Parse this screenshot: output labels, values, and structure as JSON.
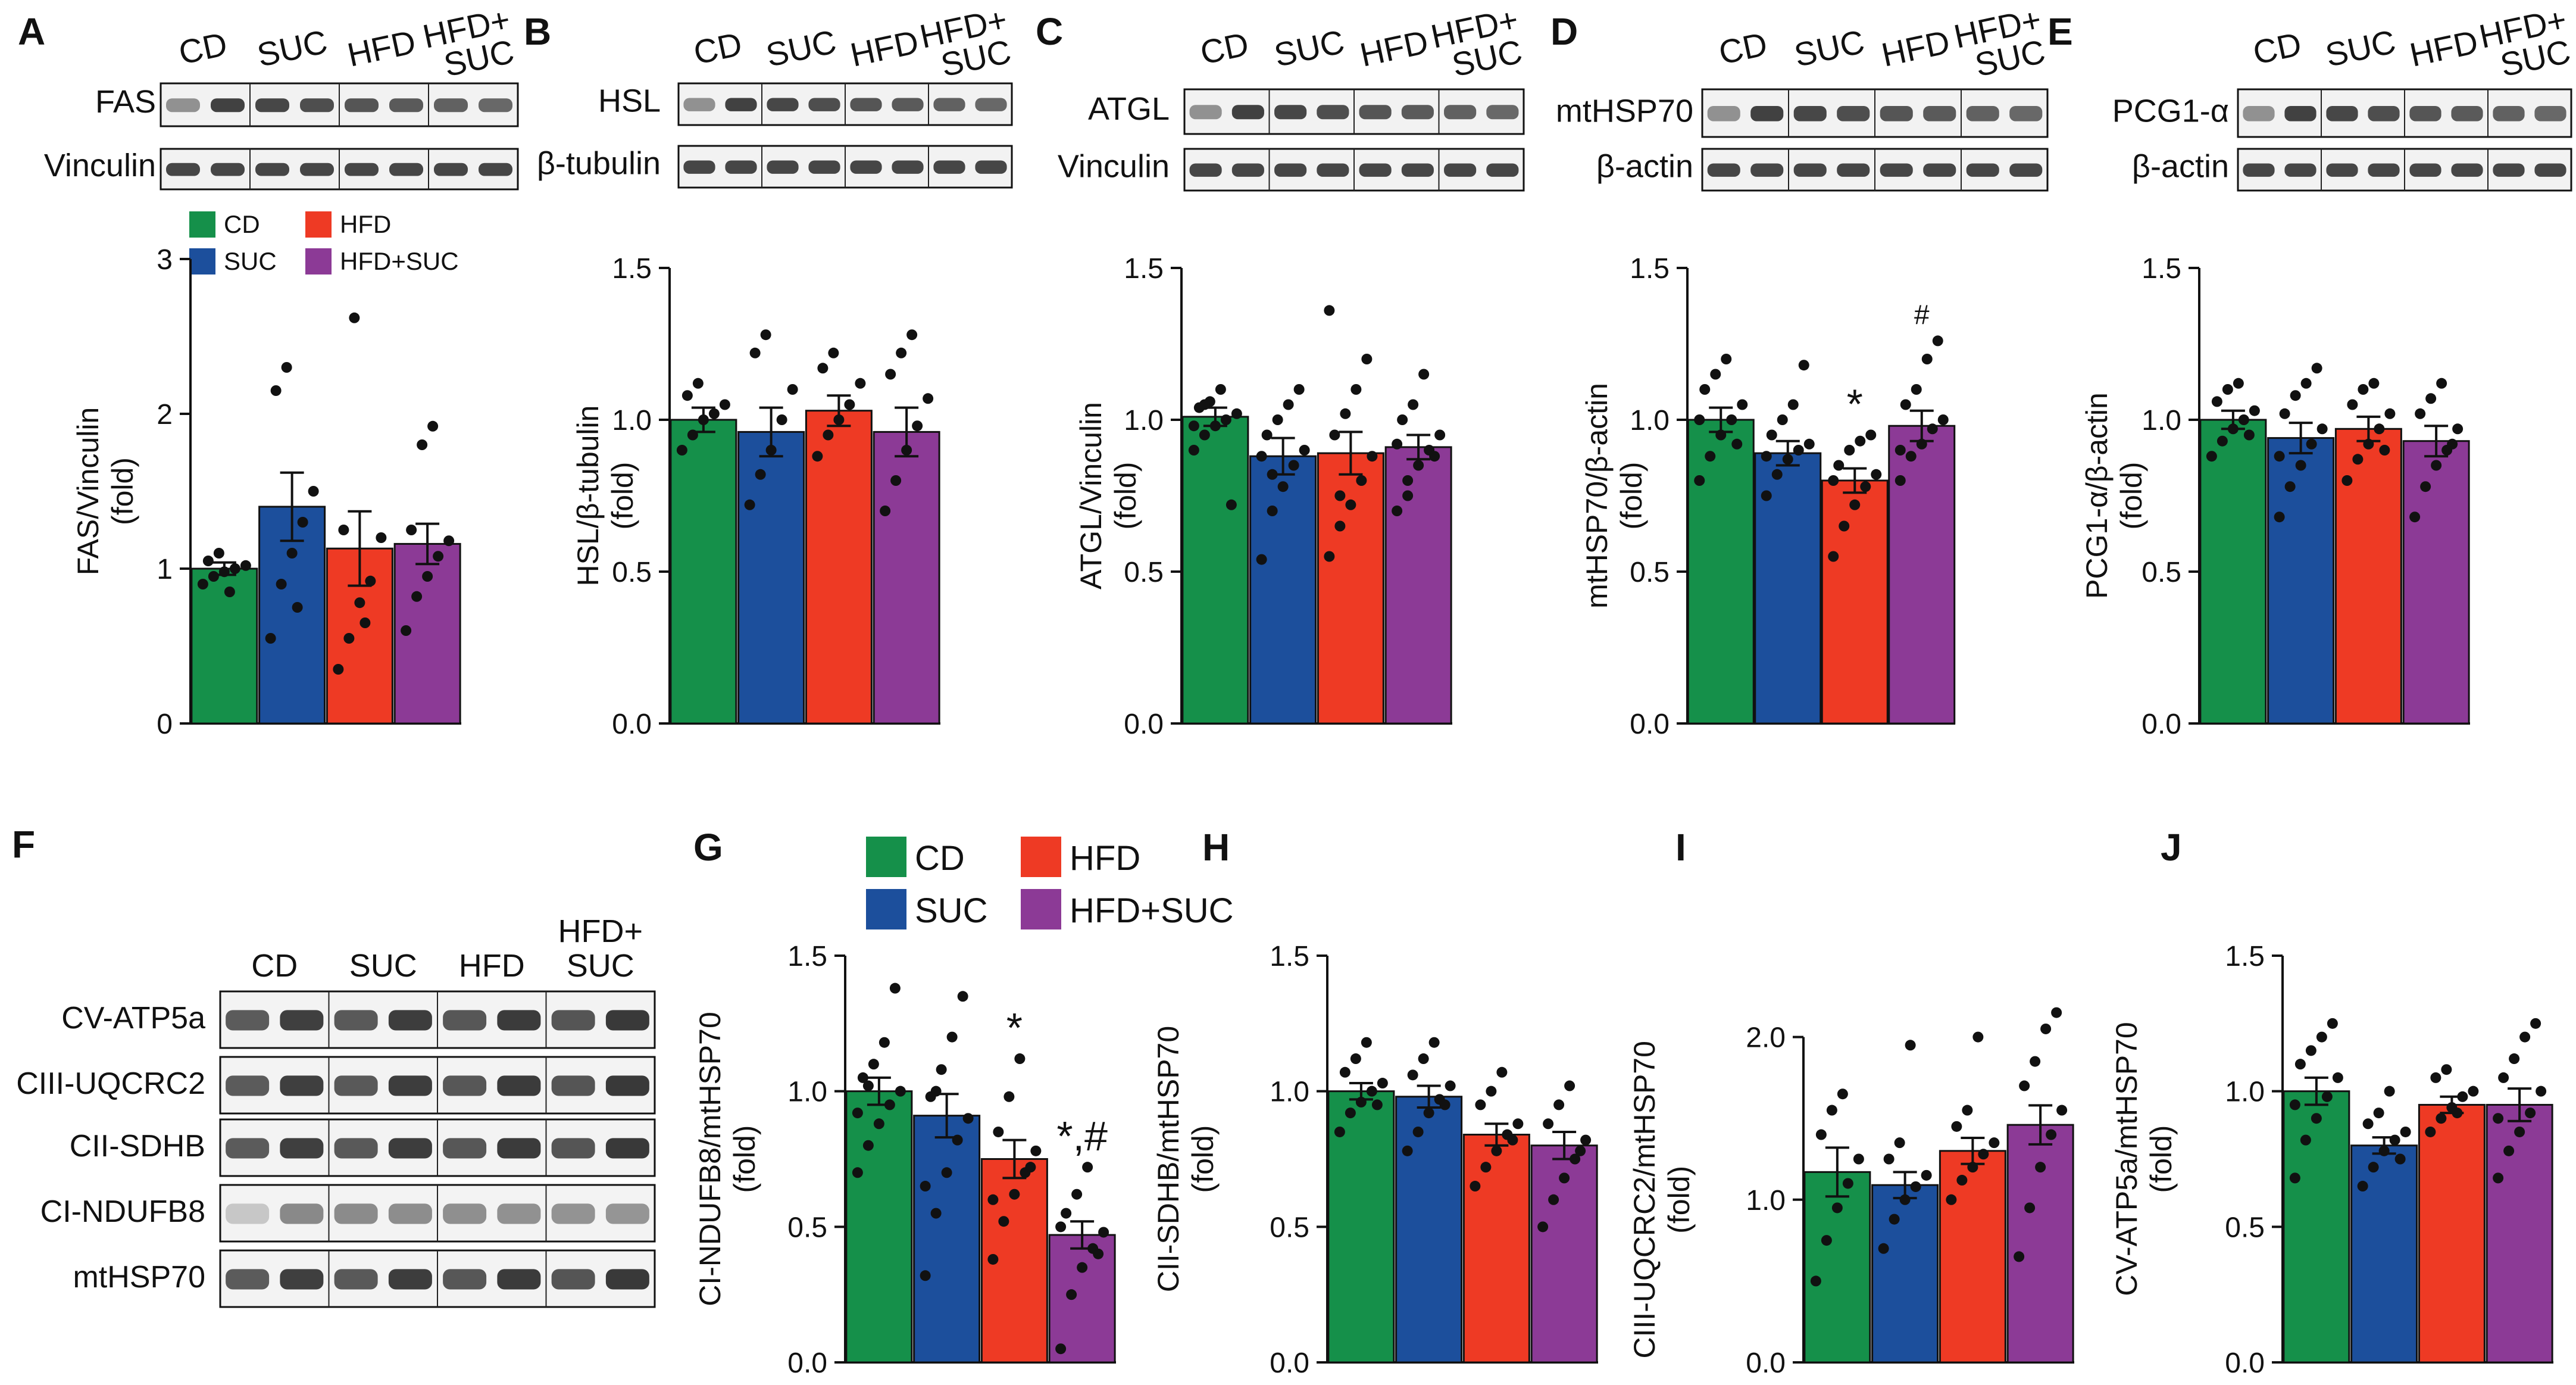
{
  "colors": {
    "CD": "#15904a",
    "SUC": "#1c4f9c",
    "HFD": "#ee3a24",
    "HFD+SUC": "#8c3a96",
    "axis": "#111111",
    "dot": "#111111"
  },
  "legend_top": {
    "items": [
      "CD",
      "SUC",
      "HFD",
      "HFD+SUC"
    ]
  },
  "legend_bottom": {
    "items": [
      "CD",
      "SUC",
      "HFD",
      "HFD+SUC"
    ]
  },
  "blot_top": {
    "A": {
      "letter": "A",
      "groups": [
        "CD",
        "SUC",
        "HFD",
        "HFD+\nSUC"
      ],
      "rows": [
        "FAS",
        "Vinculin"
      ]
    },
    "B": {
      "letter": "B",
      "groups": [
        "CD",
        "SUC",
        "HFD",
        "HFD+\nSUC"
      ],
      "rows": [
        "HSL",
        "β-tubulin"
      ]
    },
    "C": {
      "letter": "C",
      "groups": [
        "CD",
        "SUC",
        "HFD",
        "HFD+\nSUC"
      ],
      "rows": [
        "ATGL",
        "Vinculin"
      ]
    },
    "D": {
      "letter": "D",
      "groups": [
        "CD",
        "SUC",
        "HFD",
        "HFD+\nSUC"
      ],
      "rows": [
        "mtHSP70",
        "β-actin"
      ]
    },
    "E": {
      "letter": "E",
      "groups": [
        "CD",
        "SUC",
        "HFD",
        "HFD+\nSUC"
      ],
      "rows": [
        "PCG1-α",
        "β-actin"
      ]
    }
  },
  "blot_F": {
    "letter": "F",
    "groups": [
      "CD",
      "SUC",
      "HFD",
      "HFD+\nSUC"
    ],
    "rows": [
      "CV-ATP5a",
      "CIII-UQCRC2",
      "CII-SDHB",
      "CI-NDUFB8",
      "mtHSP70"
    ]
  },
  "chart_data": [
    {
      "id": "A",
      "letter": "",
      "type": "bar",
      "title": "",
      "xlabel": "",
      "ylabel": "FAS/Vinculin\n(fold)",
      "categories": [
        "CD",
        "SUC",
        "HFD",
        "HFD+SUC"
      ],
      "values": [
        1.0,
        1.4,
        1.13,
        1.16
      ],
      "errors": [
        0.04,
        0.22,
        0.24,
        0.13
      ],
      "ylim": [
        0,
        3
      ],
      "yticks": [
        0,
        1,
        2,
        3
      ],
      "tick_labels": [
        "0",
        "1",
        "2",
        "3"
      ],
      "annotations": [
        "",
        "",
        "",
        ""
      ],
      "points": [
        [
          0.9,
          0.95,
          0.98,
          1.0,
          1.02,
          1.05,
          1.1,
          0.85
        ],
        [
          0.55,
          0.9,
          1.1,
          1.3,
          1.5,
          2.15,
          2.3,
          0.75
        ],
        [
          0.35,
          0.55,
          0.78,
          0.92,
          1.2,
          1.25,
          2.62,
          0.65
        ],
        [
          0.6,
          0.82,
          0.95,
          1.08,
          1.18,
          1.25,
          1.8,
          1.92
        ]
      ]
    },
    {
      "id": "B",
      "letter": "",
      "type": "bar",
      "title": "",
      "xlabel": "",
      "ylabel": "HSL/β-tubulin\n(fold)",
      "categories": [
        "CD",
        "SUC",
        "HFD",
        "HFD+SUC"
      ],
      "values": [
        1.0,
        0.96,
        1.03,
        0.96
      ],
      "errors": [
        0.04,
        0.08,
        0.05,
        0.08
      ],
      "ylim": [
        0,
        1.5
      ],
      "yticks": [
        0,
        0.5,
        1.0,
        1.5
      ],
      "tick_labels": [
        "0.0",
        "0.5",
        "1.0",
        "1.5"
      ],
      "annotations": [
        "",
        "",
        "",
        ""
      ],
      "points": [
        [
          0.9,
          0.95,
          1.0,
          1.02,
          1.05,
          1.08,
          1.12
        ],
        [
          0.72,
          0.82,
          0.9,
          1.0,
          1.1,
          1.22,
          1.28
        ],
        [
          0.88,
          0.95,
          1.0,
          1.05,
          1.12,
          1.17,
          1.22
        ],
        [
          0.7,
          0.8,
          0.9,
          0.98,
          1.07,
          1.15,
          1.22,
          1.28
        ]
      ]
    },
    {
      "id": "C",
      "letter": "",
      "type": "bar",
      "title": "",
      "xlabel": "",
      "ylabel": "ATGL/Vinculin\n(fold)",
      "categories": [
        "CD",
        "SUC",
        "HFD",
        "HFD+SUC"
      ],
      "values": [
        1.01,
        0.88,
        0.89,
        0.91
      ],
      "errors": [
        0.03,
        0.06,
        0.07,
        0.04
      ],
      "ylim": [
        0,
        1.5
      ],
      "yticks": [
        0,
        0.5,
        1.0,
        1.5
      ],
      "tick_labels": [
        "0.0",
        "0.5",
        "1.0",
        "1.5"
      ],
      "annotations": [
        "",
        "",
        "",
        ""
      ],
      "points": [
        [
          0.9,
          0.95,
          0.98,
          1.0,
          1.02,
          1.04,
          1.06,
          1.1,
          0.72,
          0.98,
          1.05
        ],
        [
          0.54,
          0.7,
          0.78,
          0.85,
          0.9,
          0.95,
          1.0,
          1.05,
          1.1,
          0.88,
          0.82
        ],
        [
          0.55,
          0.65,
          0.72,
          0.8,
          0.88,
          0.95,
          1.02,
          1.1,
          1.2,
          1.36,
          0.75
        ],
        [
          0.7,
          0.8,
          0.85,
          0.9,
          0.95,
          1.0,
          1.05,
          1.15,
          0.88,
          0.92,
          0.75
        ]
      ]
    },
    {
      "id": "D",
      "letter": "",
      "type": "bar",
      "title": "",
      "xlabel": "",
      "ylabel": "mtHSP70/β-actin\n(fold)",
      "categories": [
        "CD",
        "SUC",
        "HFD",
        "HFD+SUC"
      ],
      "values": [
        1.0,
        0.89,
        0.8,
        0.98
      ],
      "errors": [
        0.04,
        0.04,
        0.04,
        0.05
      ],
      "ylim": [
        0,
        1.5
      ],
      "yticks": [
        0,
        0.5,
        1.0,
        1.5
      ],
      "tick_labels": [
        "0.0",
        "0.5",
        "1.0",
        "1.5"
      ],
      "annotations": [
        "",
        "",
        "*",
        "#"
      ],
      "points": [
        [
          0.8,
          0.88,
          0.95,
          1.0,
          1.05,
          1.1,
          1.15,
          1.2,
          0.92,
          1.0
        ],
        [
          0.75,
          0.82,
          0.87,
          0.9,
          0.92,
          0.95,
          1.0,
          1.05,
          1.18,
          0.88
        ],
        [
          0.55,
          0.65,
          0.72,
          0.78,
          0.82,
          0.85,
          0.9,
          0.93,
          0.95,
          0.8
        ],
        [
          0.8,
          0.88,
          0.92,
          0.97,
          1.0,
          1.05,
          1.1,
          1.2,
          1.26,
          0.9
        ]
      ]
    },
    {
      "id": "E",
      "letter": "",
      "type": "bar",
      "title": "",
      "xlabel": "",
      "ylabel": "PCG1-α/β-actin\n(fold)",
      "categories": [
        "CD",
        "SUC",
        "HFD",
        "HFD+SUC"
      ],
      "values": [
        1.0,
        0.94,
        0.97,
        0.93
      ],
      "errors": [
        0.03,
        0.05,
        0.04,
        0.05
      ],
      "ylim": [
        0,
        1.5
      ],
      "yticks": [
        0,
        0.5,
        1.0,
        1.5
      ],
      "tick_labels": [
        "0.0",
        "0.5",
        "1.0",
        "1.5"
      ],
      "annotations": [
        "",
        "",
        "",
        ""
      ],
      "points": [
        [
          0.88,
          0.93,
          0.97,
          1.0,
          1.03,
          1.06,
          1.1,
          1.12,
          0.95
        ],
        [
          0.68,
          0.78,
          0.85,
          0.92,
          0.97,
          1.02,
          1.08,
          1.12,
          1.17,
          0.88
        ],
        [
          0.8,
          0.87,
          0.92,
          0.97,
          1.02,
          1.05,
          1.1,
          1.12,
          0.9
        ],
        [
          0.68,
          0.78,
          0.85,
          0.9,
          0.97,
          1.02,
          1.07,
          1.12,
          0.92
        ]
      ]
    },
    {
      "id": "G",
      "letter": "G",
      "type": "bar",
      "title": "",
      "xlabel": "",
      "ylabel": "CI-NDUFB8/mtHSP70\n(fold)",
      "categories": [
        "CD",
        "SUC",
        "HFD",
        "HFD+SUC"
      ],
      "values": [
        1.0,
        0.91,
        0.75,
        0.47
      ],
      "errors": [
        0.05,
        0.08,
        0.07,
        0.05
      ],
      "ylim": [
        0,
        1.5
      ],
      "yticks": [
        0,
        0.5,
        1.0,
        1.5
      ],
      "tick_labels": [
        "0.0",
        "0.5",
        "1.0",
        "1.5"
      ],
      "annotations": [
        "",
        "",
        "*",
        "*,#"
      ],
      "points": [
        [
          0.7,
          0.8,
          0.88,
          0.95,
          1.0,
          1.05,
          1.1,
          1.18,
          1.38,
          0.92,
          1.02
        ],
        [
          0.32,
          0.55,
          0.7,
          0.82,
          0.9,
          0.98,
          1.08,
          1.2,
          1.35,
          0.65,
          1.0
        ],
        [
          0.38,
          0.52,
          0.62,
          0.7,
          0.78,
          0.85,
          0.98,
          1.12,
          0.72,
          0.6
        ],
        [
          0.05,
          0.25,
          0.35,
          0.42,
          0.48,
          0.55,
          0.62,
          0.72,
          0.4,
          0.5
        ]
      ]
    },
    {
      "id": "H",
      "letter": "H",
      "type": "bar",
      "title": "",
      "xlabel": "",
      "ylabel": "CII-SDHB/mtHSP70\n(fold)",
      "categories": [
        "CD",
        "SUC",
        "HFD",
        "HFD+SUC"
      ],
      "values": [
        1.0,
        0.98,
        0.84,
        0.8
      ],
      "errors": [
        0.03,
        0.04,
        0.04,
        0.05
      ],
      "ylim": [
        0,
        1.5
      ],
      "yticks": [
        0,
        0.5,
        1.0,
        1.5
      ],
      "tick_labels": [
        "0.0",
        "0.5",
        "1.0",
        "1.5"
      ],
      "annotations": [
        "",
        "",
        "",
        ""
      ],
      "points": [
        [
          0.85,
          0.92,
          0.96,
          1.0,
          1.03,
          1.07,
          1.12,
          1.18,
          0.95
        ],
        [
          0.78,
          0.85,
          0.92,
          0.97,
          1.02,
          1.06,
          1.12,
          1.18,
          0.95
        ],
        [
          0.65,
          0.72,
          0.78,
          0.84,
          0.88,
          0.95,
          1.0,
          1.07,
          0.82
        ],
        [
          0.5,
          0.6,
          0.68,
          0.75,
          0.82,
          0.88,
          0.95,
          1.02,
          0.78
        ]
      ]
    },
    {
      "id": "I",
      "letter": "I",
      "type": "bar",
      "title": "",
      "xlabel": "",
      "ylabel": "CIII-UQCRC2/mtHSP70\n(fold)",
      "categories": [
        "CD",
        "SUC",
        "HFD",
        "HFD+SUC"
      ],
      "values": [
        1.17,
        1.09,
        1.3,
        1.46
      ],
      "errors": [
        0.15,
        0.08,
        0.08,
        0.12
      ],
      "ylim": [
        0,
        2.5
      ],
      "yticks": [
        0,
        1.0,
        2.0
      ],
      "tick_labels": [
        "0.0",
        "1.0",
        "2.0"
      ],
      "annotations": [
        "",
        "",
        "",
        ""
      ],
      "points": [
        [
          0.5,
          0.75,
          0.95,
          1.1,
          1.25,
          1.4,
          1.55,
          1.65
        ],
        [
          0.7,
          0.88,
          1.0,
          1.08,
          1.15,
          1.25,
          1.35,
          1.95
        ],
        [
          1.0,
          1.12,
          1.2,
          1.28,
          1.35,
          1.45,
          1.55,
          2.0
        ],
        [
          0.65,
          0.95,
          1.2,
          1.4,
          1.55,
          1.7,
          1.85,
          2.05,
          2.15
        ]
      ]
    },
    {
      "id": "J",
      "letter": "J",
      "type": "bar",
      "title": "",
      "xlabel": "",
      "ylabel": "CV-ATP5a/mtHSP70\n(fold)",
      "categories": [
        "CD",
        "SUC",
        "HFD",
        "HFD+SUC"
      ],
      "values": [
        1.0,
        0.8,
        0.95,
        0.95
      ],
      "errors": [
        0.05,
        0.03,
        0.03,
        0.06
      ],
      "ylim": [
        0,
        1.5
      ],
      "yticks": [
        0,
        0.5,
        1.0,
        1.5
      ],
      "tick_labels": [
        "0.0",
        "0.5",
        "1.0",
        "1.5"
      ],
      "annotations": [
        "",
        "",
        "",
        ""
      ],
      "points": [
        [
          0.68,
          0.82,
          0.9,
          0.98,
          1.05,
          1.1,
          1.15,
          1.2,
          1.25,
          0.95
        ],
        [
          0.65,
          0.72,
          0.78,
          0.82,
          0.85,
          0.88,
          0.92,
          1.0,
          0.75
        ],
        [
          0.85,
          0.9,
          0.94,
          0.98,
          1.0,
          1.05,
          1.08,
          0.92
        ],
        [
          0.68,
          0.78,
          0.85,
          0.92,
          1.0,
          1.05,
          1.12,
          1.2,
          1.25,
          0.9
        ]
      ]
    }
  ]
}
